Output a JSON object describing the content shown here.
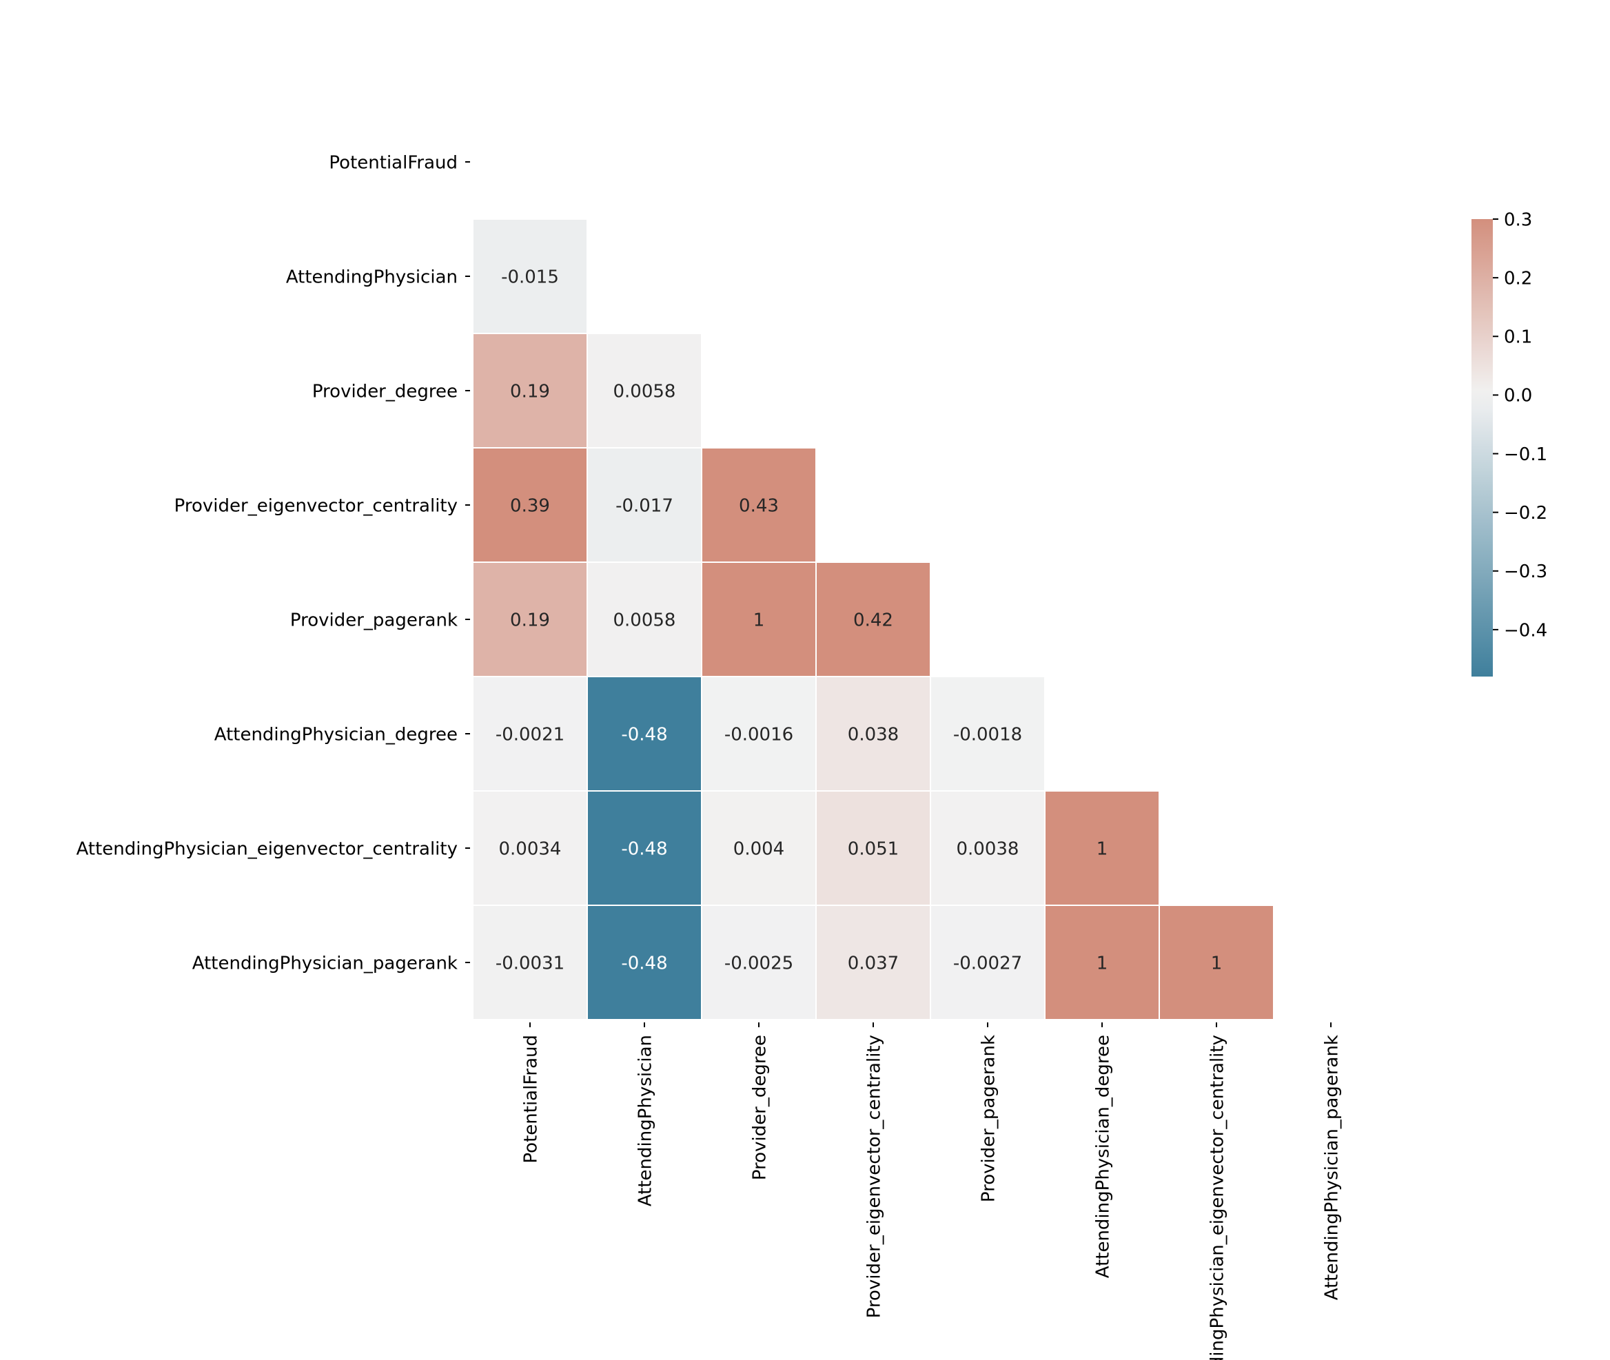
{
  "chart_data": {
    "type": "heatmap",
    "title": "",
    "xlabel": "",
    "ylabel": "",
    "mask": "upper-triangle-including-diagonal",
    "labels": [
      "PotentialFraud",
      "AttendingPhysician",
      "Provider_degree",
      "Provider_eigenvector_centrality",
      "Provider_pagerank",
      "AttendingPhysician_degree",
      "AttendingPhysician_eigenvector_centrality",
      "AttendingPhysician_pagerank"
    ],
    "cells": [
      {
        "row": 1,
        "col": 0,
        "value": -0.015,
        "label": "-0.015"
      },
      {
        "row": 2,
        "col": 0,
        "value": 0.19,
        "label": "0.19"
      },
      {
        "row": 2,
        "col": 1,
        "value": 0.0058,
        "label": "0.0058"
      },
      {
        "row": 3,
        "col": 0,
        "value": 0.39,
        "label": "0.39"
      },
      {
        "row": 3,
        "col": 1,
        "value": -0.017,
        "label": "-0.017"
      },
      {
        "row": 3,
        "col": 2,
        "value": 0.43,
        "label": "0.43"
      },
      {
        "row": 4,
        "col": 0,
        "value": 0.19,
        "label": "0.19"
      },
      {
        "row": 4,
        "col": 1,
        "value": 0.0058,
        "label": "0.0058"
      },
      {
        "row": 4,
        "col": 2,
        "value": 1,
        "label": "1"
      },
      {
        "row": 4,
        "col": 3,
        "value": 0.42,
        "label": "0.42"
      },
      {
        "row": 5,
        "col": 0,
        "value": -0.0021,
        "label": "-0.0021"
      },
      {
        "row": 5,
        "col": 1,
        "value": -0.48,
        "label": "-0.48"
      },
      {
        "row": 5,
        "col": 2,
        "value": -0.0016,
        "label": "-0.0016"
      },
      {
        "row": 5,
        "col": 3,
        "value": 0.038,
        "label": "0.038"
      },
      {
        "row": 5,
        "col": 4,
        "value": -0.0018,
        "label": "-0.0018"
      },
      {
        "row": 6,
        "col": 0,
        "value": 0.0034,
        "label": "0.0034"
      },
      {
        "row": 6,
        "col": 1,
        "value": -0.48,
        "label": "-0.48"
      },
      {
        "row": 6,
        "col": 2,
        "value": 0.004,
        "label": "0.004"
      },
      {
        "row": 6,
        "col": 3,
        "value": 0.051,
        "label": "0.051"
      },
      {
        "row": 6,
        "col": 4,
        "value": 0.0038,
        "label": "0.0038"
      },
      {
        "row": 6,
        "col": 5,
        "value": 1,
        "label": "1"
      },
      {
        "row": 7,
        "col": 0,
        "value": -0.0031,
        "label": "-0.0031"
      },
      {
        "row": 7,
        "col": 1,
        "value": -0.48,
        "label": "-0.48"
      },
      {
        "row": 7,
        "col": 2,
        "value": -0.0025,
        "label": "-0.0025"
      },
      {
        "row": 7,
        "col": 3,
        "value": 0.037,
        "label": "0.037"
      },
      {
        "row": 7,
        "col": 4,
        "value": -0.0027,
        "label": "-0.0027"
      },
      {
        "row": 7,
        "col": 5,
        "value": 1,
        "label": "1"
      },
      {
        "row": 7,
        "col": 6,
        "value": 1,
        "label": "1"
      }
    ],
    "colorbar": {
      "vmin": -0.48,
      "vmax": 0.3,
      "ticks": [
        0.3,
        0.2,
        0.1,
        0.0,
        -0.1,
        -0.2,
        -0.3,
        -0.4
      ],
      "tick_labels": [
        "0.3",
        "0.2",
        "0.1",
        "0.0",
        "−0.1",
        "−0.2",
        "−0.3",
        "−0.4"
      ]
    },
    "colors": {
      "low": "#3f7f9c",
      "mid": "#f2f2f2",
      "high": "#d38f7d",
      "grid_line": "#ffffff",
      "text_dark": "#262626",
      "text_light": "#ffffff"
    }
  }
}
